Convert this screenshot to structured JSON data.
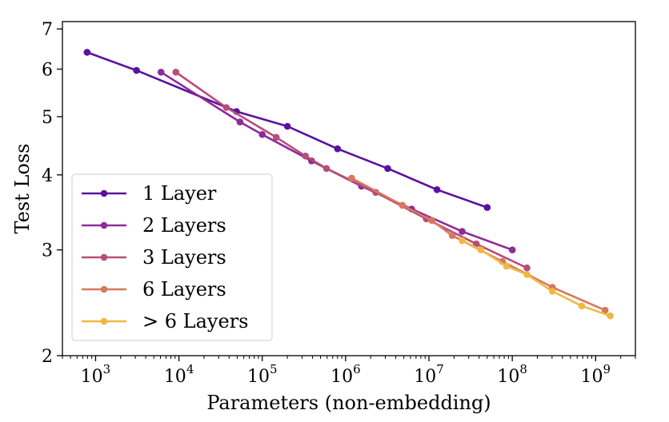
{
  "chart_data": {
    "type": "line",
    "title": "",
    "xlabel": "Parameters (non-embedding)",
    "ylabel": "Test Loss",
    "xscale": "log",
    "yscale": "log",
    "xlim": [
      400,
      3000000000
    ],
    "ylim": [
      2,
      7.2
    ],
    "x_major_ticks": [
      {
        "value": 1000,
        "base": "10",
        "exp": "3"
      },
      {
        "value": 10000,
        "base": "10",
        "exp": "4"
      },
      {
        "value": 100000,
        "base": "10",
        "exp": "5"
      },
      {
        "value": 1000000,
        "base": "10",
        "exp": "6"
      },
      {
        "value": 10000000,
        "base": "10",
        "exp": "7"
      },
      {
        "value": 100000000,
        "base": "10",
        "exp": "8"
      },
      {
        "value": 1000000000,
        "base": "10",
        "exp": "9"
      }
    ],
    "y_ticks": [
      {
        "value": 2,
        "label": "2"
      },
      {
        "value": 3,
        "label": "3"
      },
      {
        "value": 4,
        "label": "4"
      },
      {
        "value": 5,
        "label": "5"
      },
      {
        "value": 6,
        "label": "6"
      },
      {
        "value": 7,
        "label": "7"
      }
    ],
    "grid": false,
    "legend_position": "lower-left",
    "series": [
      {
        "name": "1 Layer",
        "color": "#5a12a0",
        "x": [
          790,
          3100,
          49000,
          200000,
          800000,
          3200000,
          12500000,
          50000000
        ],
        "y": [
          6.4,
          5.97,
          5.1,
          4.82,
          4.42,
          4.1,
          3.78,
          3.53
        ]
      },
      {
        "name": "2 Layers",
        "color": "#8f2a9a",
        "x": [
          6100,
          54000,
          100000,
          390000,
          1550000,
          6200000,
          25000000,
          100000000
        ],
        "y": [
          5.93,
          4.9,
          4.67,
          4.22,
          3.83,
          3.51,
          3.22,
          3.0
        ]
      },
      {
        "name": "3 Layers",
        "color": "#b84d78",
        "x": [
          9200,
          37000,
          147000,
          330000,
          590000,
          2300000,
          9300000,
          37000000,
          150000000
        ],
        "y": [
          5.93,
          5.18,
          4.62,
          4.3,
          4.1,
          3.74,
          3.38,
          3.07,
          2.8
        ]
      },
      {
        "name": "6 Layers",
        "color": "#d7775e",
        "x": [
          1180000,
          4800000,
          10800000,
          19000000,
          76000000,
          302000000,
          1300000000
        ],
        "y": [
          3.95,
          3.56,
          3.36,
          3.17,
          2.87,
          2.6,
          2.38
        ]
      },
      {
        "name": "> 6 Layers",
        "color": "#f0b843",
        "x": [
          25000000,
          42000000,
          85000000,
          150000000,
          302000000,
          680000000,
          1500000000
        ],
        "y": [
          3.11,
          3.0,
          2.82,
          2.73,
          2.56,
          2.42,
          2.33
        ]
      }
    ]
  }
}
